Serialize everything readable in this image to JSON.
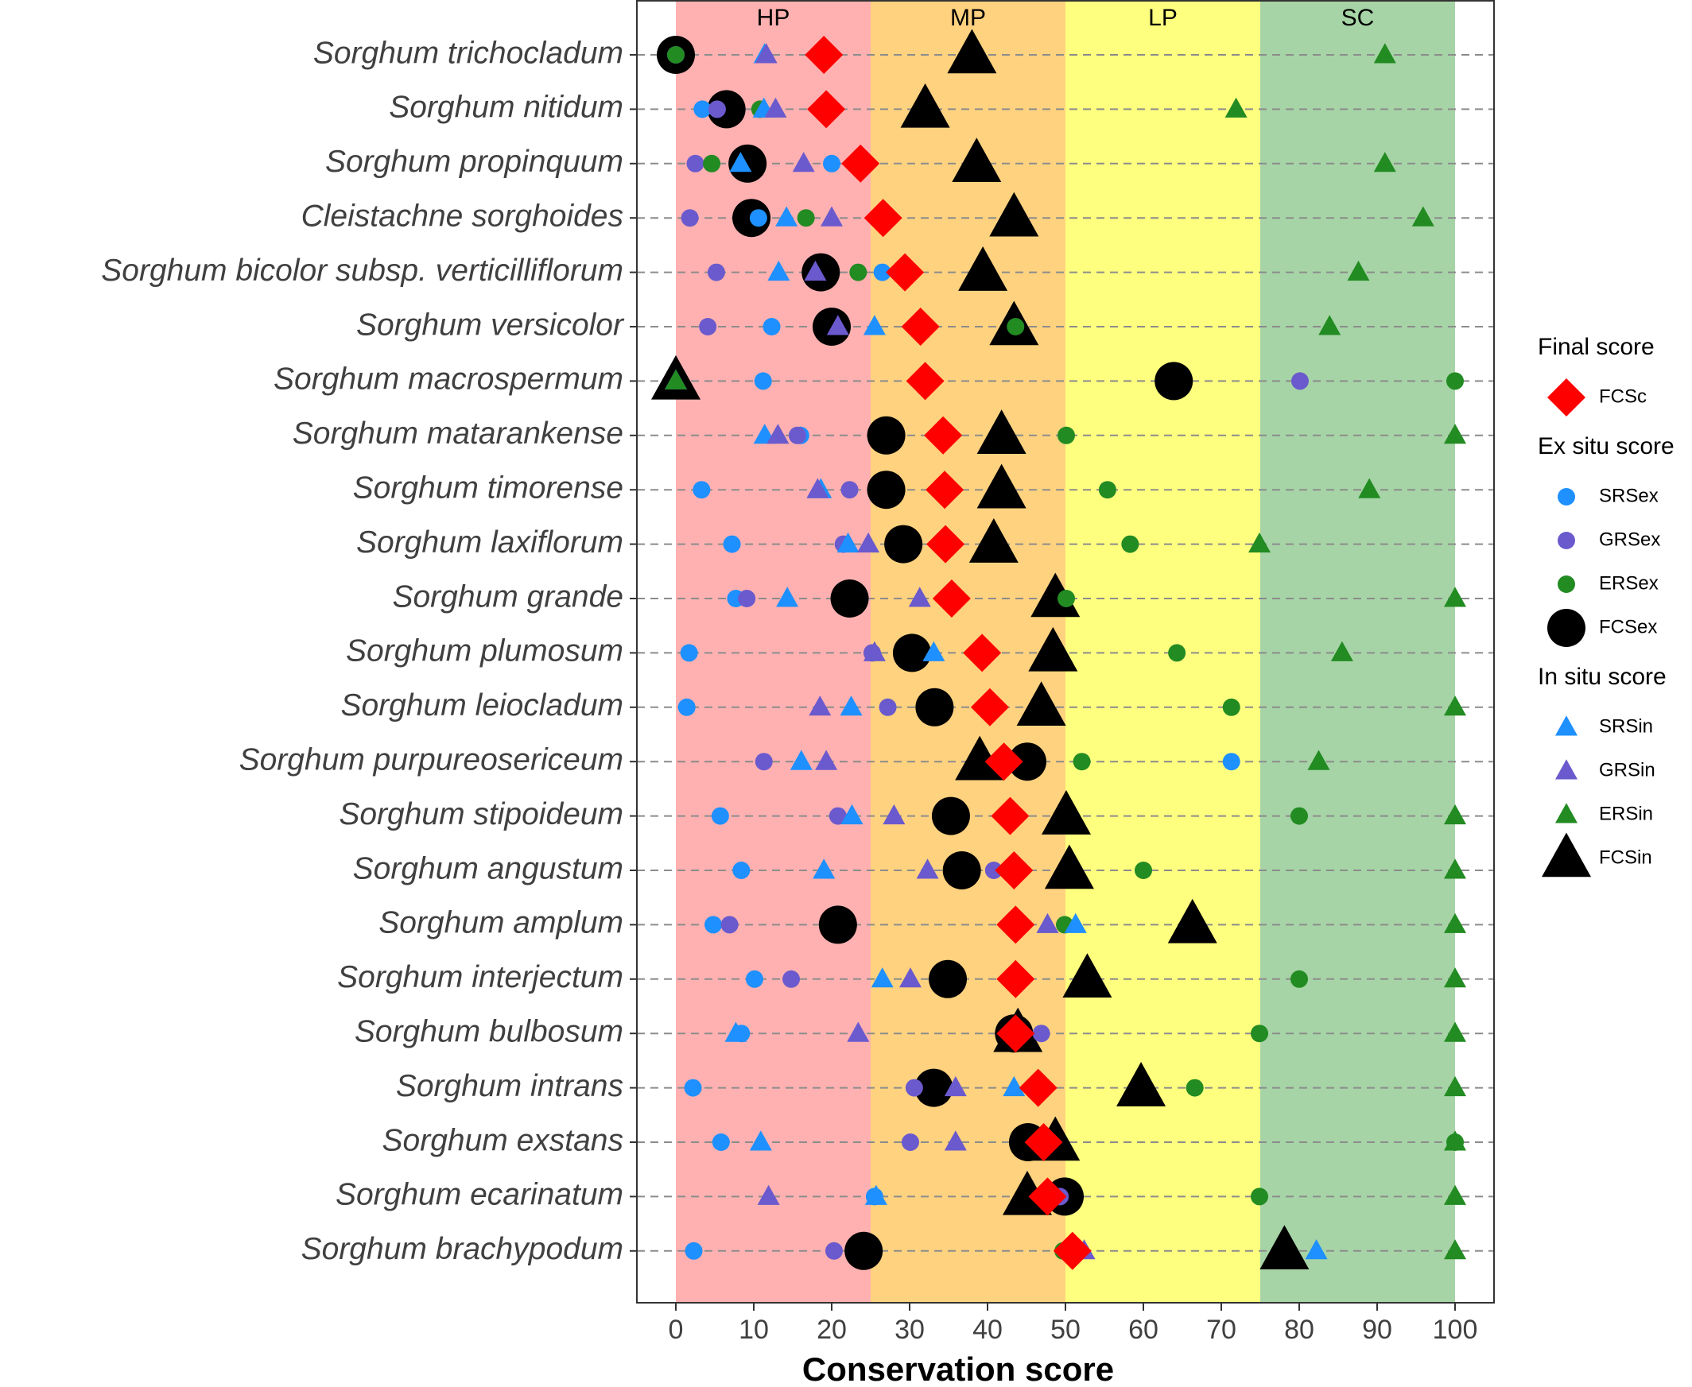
{
  "chart_data": {
    "type": "dot",
    "x_label": "Conservation score",
    "categories": [
      "Sorghum trichocladum",
      "Sorghum nitidum",
      "Sorghum propinquum",
      "Cleistachne sorghoides",
      "Sorghum bicolor subsp. verticilliflorum",
      "Sorghum versicolor",
      "Sorghum macrospermum",
      "Sorghum matarankense",
      "Sorghum timorense",
      "Sorghum laxiflorum",
      "Sorghum grande",
      "Sorghum plumosum",
      "Sorghum leiocladum",
      "Sorghum purpureosericeum",
      "Sorghum stipoideum",
      "Sorghum angustum",
      "Sorghum amplum",
      "Sorghum interjectum",
      "Sorghum bulbosum",
      "Sorghum intrans",
      "Sorghum exstans",
      "Sorghum ecarinatum",
      "Sorghum brachypodum"
    ],
    "xlim": [
      -5,
      105
    ],
    "xticks": [
      0,
      10,
      20,
      30,
      40,
      50,
      60,
      70,
      80,
      90,
      100
    ],
    "grid": true,
    "bands": [
      {
        "label": "HP",
        "from": 0,
        "to": 25,
        "color": "#ffb1b1"
      },
      {
        "label": "MP",
        "from": 25,
        "to": 50,
        "color": "#ffd27f"
      },
      {
        "label": "LP",
        "from": 50,
        "to": 75,
        "color": "#ffff7f"
      },
      {
        "label": "SC",
        "from": 75,
        "to": 100,
        "color": "#a6d4a6"
      }
    ],
    "series": [
      {
        "name": "FCSc",
        "group": "Final score",
        "color": "#ff0000",
        "marker": "diamond",
        "size": "large",
        "values": [
          19,
          19.3,
          23.7,
          26.6,
          29.4,
          31.4,
          32,
          34.3,
          34.5,
          34.6,
          35.4,
          39.3,
          40.3,
          42.1,
          42.9,
          43.4,
          43.6,
          43.6,
          43.6,
          46.5,
          47.2,
          47.7,
          50.9
        ]
      },
      {
        "name": "SRSex",
        "group": "Ex situ score",
        "color": "#1e90ff",
        "marker": "circle",
        "size": "small",
        "values": [
          0,
          3.4,
          20,
          10.6,
          26.5,
          12.3,
          11.2,
          16,
          3.3,
          7.2,
          7.7,
          1.7,
          1.4,
          71.3,
          5.7,
          8.4,
          4.8,
          10.1,
          8.4,
          2.2,
          5.8,
          25.5,
          2.3
        ]
      },
      {
        "name": "GRSex",
        "group": "Ex situ score",
        "color": "#6a5acd",
        "marker": "circle",
        "size": "small",
        "values": [
          0,
          5.3,
          2.5,
          1.8,
          5.2,
          4.1,
          80.1,
          15.6,
          22.3,
          21.5,
          9.1,
          25.2,
          27.2,
          11.3,
          20.8,
          40.8,
          6.9,
          14.8,
          46.9,
          30.6,
          30.1,
          49.3,
          20.3
        ]
      },
      {
        "name": "ERSex",
        "group": "Ex situ score",
        "color": "#228b22",
        "marker": "circle",
        "size": "small",
        "values": [
          0,
          10.8,
          4.6,
          16.7,
          23.4,
          43.6,
          100,
          50.1,
          55.4,
          58.3,
          50.1,
          64.3,
          71.3,
          52.1,
          80,
          60,
          49.9,
          80,
          74.9,
          66.6,
          100,
          74.9,
          49.7
        ]
      },
      {
        "name": "FCSex",
        "group": "Ex situ score",
        "color": "#000000",
        "marker": "circle",
        "size": "large",
        "values": [
          0,
          6.5,
          9.2,
          9.7,
          18.6,
          20,
          63.9,
          27,
          27,
          29.2,
          22.3,
          30.3,
          33.2,
          45.1,
          35.3,
          36.7,
          20.8,
          34.9,
          43.4,
          33.1,
          45.2,
          49.9,
          24.1
        ]
      },
      {
        "name": "SRSin",
        "group": "In situ score",
        "color": "#1e90ff",
        "marker": "triangle",
        "size": "small",
        "values": [
          11.4,
          11.3,
          8.3,
          14.2,
          13.2,
          25.5,
          0,
          11.4,
          18.6,
          22.1,
          14.3,
          33.1,
          22.5,
          16.1,
          22.6,
          19,
          51.3,
          26.5,
          7.7,
          43.4,
          10.9,
          25.7,
          82.2
        ]
      },
      {
        "name": "GRSin",
        "group": "In situ score",
        "color": "#6a5acd",
        "marker": "triangle",
        "size": "small",
        "values": [
          11.6,
          12.8,
          16.4,
          20,
          17.9,
          20.8,
          0,
          13.1,
          18.2,
          24.7,
          31.3,
          25.5,
          18.5,
          19.3,
          28,
          32.3,
          47.7,
          30.1,
          23.4,
          35.9,
          35.9,
          11.9,
          52.4
        ]
      },
      {
        "name": "ERSin",
        "group": "In situ score",
        "color": "#228b22",
        "marker": "triangle",
        "size": "small",
        "values": [
          91,
          71.9,
          91,
          95.9,
          87.6,
          83.9,
          0,
          100,
          89,
          74.9,
          100,
          85.5,
          100,
          82.5,
          100,
          100,
          100,
          100,
          100,
          100,
          100,
          100,
          100
        ]
      },
      {
        "name": "FCSin",
        "group": "In situ score",
        "color": "#000000",
        "marker": "triangle",
        "size": "large",
        "values": [
          38,
          32,
          38.6,
          43.4,
          39.4,
          43.4,
          0,
          41.8,
          41.8,
          40.8,
          48.7,
          48.4,
          46.9,
          39,
          50.1,
          50.5,
          66.3,
          52.8,
          43.9,
          59.7,
          48.7,
          45.1,
          78.1
        ]
      }
    ]
  }
}
